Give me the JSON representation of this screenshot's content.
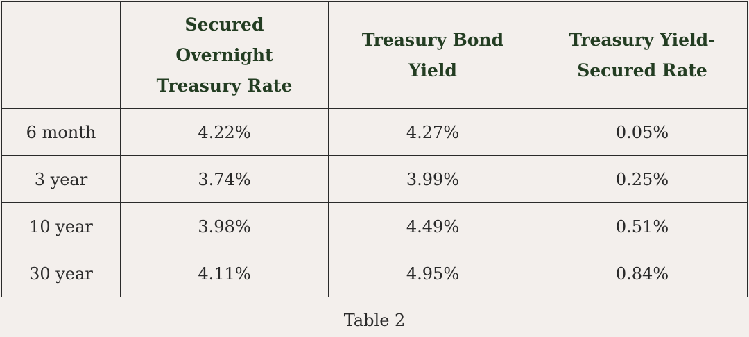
{
  "table": {
    "headers": [
      [],
      [
        "Secured",
        "Overnight",
        "Treasury Rate"
      ],
      [
        "Treasury Bond",
        "Yield"
      ],
      [
        "Treasury Yield-",
        "Secured Rate"
      ]
    ],
    "rows": [
      [
        "6 month",
        "4.22%",
        "4.27%",
        "0.05%"
      ],
      [
        "3 year",
        "3.74%",
        "3.99%",
        "0.25%"
      ],
      [
        "10 year",
        "3.98%",
        "4.49%",
        "0.51%"
      ],
      [
        "30 year",
        "4.11%",
        "4.95%",
        "0.84%"
      ]
    ]
  },
  "caption": "Table 2",
  "colors": {
    "background": "#f3efec",
    "header_text": "#233d22",
    "body_text": "#2a2a2a",
    "border": "#2a2a2a"
  }
}
